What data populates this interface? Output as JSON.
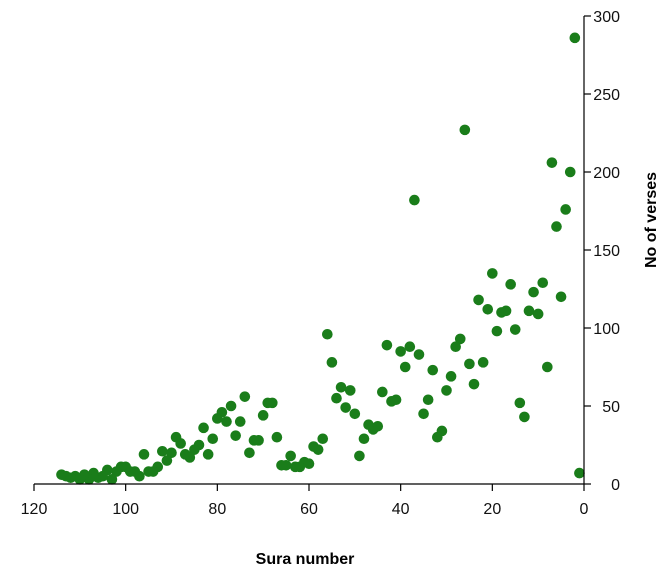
{
  "chart_data": {
    "type": "scatter",
    "xlabel": "Sura number",
    "ylabel": "No of verses",
    "xlim": [
      120,
      0
    ],
    "ylim": [
      0,
      300
    ],
    "x_reversed": true,
    "y_axis_side": "right",
    "grid": false,
    "legend": "none",
    "marker_color": "#1a7d1a",
    "x_ticks": [
      120,
      100,
      80,
      60,
      40,
      20,
      0
    ],
    "y_ticks": [
      0,
      50,
      100,
      150,
      200,
      250,
      300
    ],
    "x_tick_labels": [
      "120",
      "100",
      "80",
      "60",
      "40",
      "20",
      "0"
    ],
    "y_tick_labels": [
      "0",
      "50",
      "100",
      "150",
      "200",
      "250",
      "300"
    ],
    "series": [
      {
        "points": [
          [
            2,
            286
          ],
          [
            3,
            200
          ],
          [
            4,
            176
          ],
          [
            5,
            120
          ],
          [
            6,
            165
          ],
          [
            7,
            206
          ],
          [
            8,
            75
          ],
          [
            9,
            129
          ],
          [
            10,
            109
          ],
          [
            11,
            123
          ],
          [
            12,
            111
          ],
          [
            13,
            43
          ],
          [
            14,
            52
          ],
          [
            15,
            99
          ],
          [
            16,
            128
          ],
          [
            17,
            111
          ],
          [
            18,
            110
          ],
          [
            19,
            98
          ],
          [
            20,
            135
          ],
          [
            21,
            112
          ],
          [
            22,
            78
          ],
          [
            23,
            118
          ],
          [
            24,
            64
          ],
          [
            25,
            77
          ],
          [
            26,
            227
          ],
          [
            27,
            93
          ],
          [
            28,
            88
          ],
          [
            29,
            69
          ],
          [
            30,
            60
          ],
          [
            31,
            34
          ],
          [
            32,
            30
          ],
          [
            33,
            73
          ],
          [
            34,
            54
          ],
          [
            35,
            45
          ],
          [
            36,
            83
          ],
          [
            37,
            182
          ],
          [
            38,
            88
          ],
          [
            39,
            75
          ],
          [
            40,
            85
          ],
          [
            41,
            54
          ],
          [
            42,
            53
          ],
          [
            43,
            89
          ],
          [
            44,
            59
          ],
          [
            45,
            37
          ],
          [
            46,
            35
          ],
          [
            47,
            38
          ],
          [
            48,
            29
          ],
          [
            49,
            18
          ],
          [
            50,
            45
          ],
          [
            51,
            60
          ],
          [
            52,
            49
          ],
          [
            53,
            62
          ],
          [
            54,
            55
          ],
          [
            55,
            78
          ],
          [
            56,
            96
          ],
          [
            57,
            29
          ],
          [
            58,
            22
          ],
          [
            59,
            24
          ],
          [
            60,
            13
          ],
          [
            61,
            14
          ],
          [
            62,
            11
          ],
          [
            63,
            11
          ],
          [
            64,
            18
          ],
          [
            65,
            12
          ],
          [
            66,
            12
          ],
          [
            67,
            30
          ],
          [
            68,
            52
          ],
          [
            69,
            52
          ],
          [
            70,
            44
          ],
          [
            71,
            28
          ],
          [
            72,
            28
          ],
          [
            73,
            20
          ],
          [
            74,
            56
          ],
          [
            75,
            40
          ],
          [
            76,
            31
          ],
          [
            77,
            50
          ],
          [
            78,
            40
          ],
          [
            79,
            46
          ],
          [
            80,
            42
          ],
          [
            81,
            29
          ],
          [
            82,
            19
          ],
          [
            83,
            36
          ],
          [
            84,
            25
          ],
          [
            85,
            22
          ],
          [
            86,
            17
          ],
          [
            87,
            19
          ],
          [
            88,
            26
          ],
          [
            89,
            30
          ],
          [
            90,
            20
          ],
          [
            91,
            15
          ],
          [
            92,
            21
          ],
          [
            93,
            11
          ],
          [
            94,
            8
          ],
          [
            95,
            8
          ],
          [
            96,
            19
          ],
          [
            97,
            5
          ],
          [
            98,
            8
          ],
          [
            99,
            8
          ],
          [
            100,
            11
          ],
          [
            101,
            11
          ],
          [
            102,
            8
          ],
          [
            103,
            3
          ],
          [
            104,
            9
          ],
          [
            105,
            5
          ],
          [
            106,
            4
          ],
          [
            107,
            7
          ],
          [
            108,
            3
          ],
          [
            109,
            6
          ],
          [
            110,
            3
          ],
          [
            111,
            5
          ],
          [
            112,
            4
          ],
          [
            113,
            5
          ],
          [
            114,
            6
          ],
          [
            1,
            7
          ]
        ]
      }
    ]
  }
}
